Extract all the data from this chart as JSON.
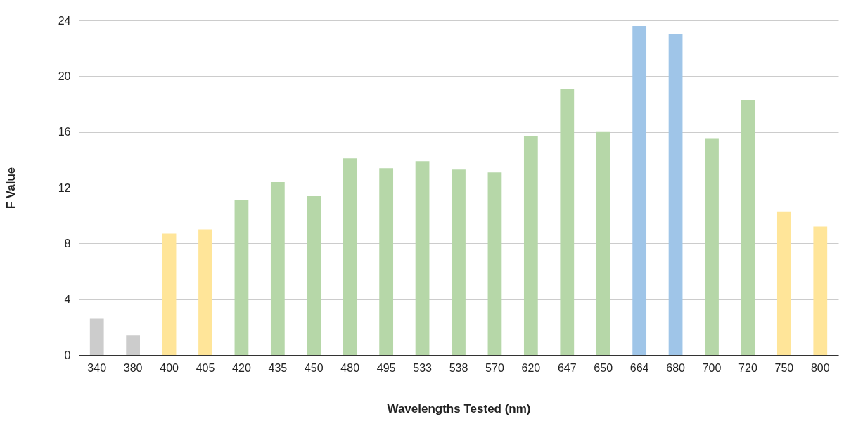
{
  "chart_data": {
    "type": "bar",
    "xlabel": "Wavelengths Tested (nm)",
    "ylabel": "F Value",
    "categories": [
      "340",
      "380",
      "400",
      "405",
      "420",
      "435",
      "450",
      "480",
      "495",
      "533",
      "538",
      "570",
      "620",
      "647",
      "650",
      "664",
      "680",
      "700",
      "720",
      "750",
      "800"
    ],
    "values": [
      2.6,
      1.4,
      8.7,
      9.0,
      11.1,
      12.4,
      11.4,
      14.1,
      13.4,
      13.9,
      13.3,
      13.1,
      15.7,
      19.1,
      16.0,
      23.6,
      23.0,
      15.5,
      18.3,
      10.3,
      9.2
    ],
    "colors": [
      "#cccccc",
      "#cccccc",
      "#ffe599",
      "#ffe599",
      "#b6d7a8",
      "#b6d7a8",
      "#b6d7a8",
      "#b6d7a8",
      "#b6d7a8",
      "#b6d7a8",
      "#b6d7a8",
      "#b6d7a8",
      "#b6d7a8",
      "#b6d7a8",
      "#b6d7a8",
      "#9fc5e8",
      "#9fc5e8",
      "#b6d7a8",
      "#b6d7a8",
      "#ffe599",
      "#ffe599"
    ],
    "ylim": [
      0,
      24
    ],
    "yticks": [
      0,
      4,
      8,
      12,
      16,
      20,
      24
    ],
    "grid": "y"
  }
}
